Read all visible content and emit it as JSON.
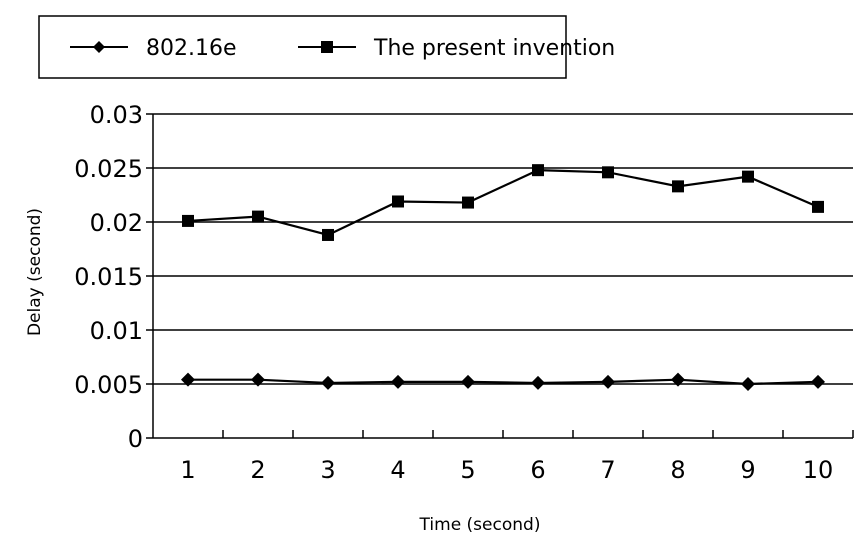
{
  "chart_data": {
    "type": "line",
    "xlabel": "Time (second)",
    "ylabel": "Delay (second)",
    "categories": [
      "1",
      "2",
      "3",
      "4",
      "5",
      "6",
      "7",
      "8",
      "9",
      "10"
    ],
    "ylim": [
      0,
      0.03
    ],
    "y_ticks": [
      "0",
      "0.005",
      "0.01",
      "0.015",
      "0.02",
      "0.025",
      "0.03"
    ],
    "grid": true,
    "legend_position": "top-left",
    "series": [
      {
        "name": "802.16e",
        "marker": "diamond",
        "values": [
          0.0054,
          0.0054,
          0.0051,
          0.0052,
          0.0052,
          0.0051,
          0.0052,
          0.0054,
          0.005,
          0.0052
        ]
      },
      {
        "name": "The present invention",
        "marker": "square",
        "values": [
          0.0201,
          0.0205,
          0.0188,
          0.0219,
          0.0218,
          0.0248,
          0.0246,
          0.0233,
          0.0242,
          0.0214
        ]
      }
    ]
  }
}
